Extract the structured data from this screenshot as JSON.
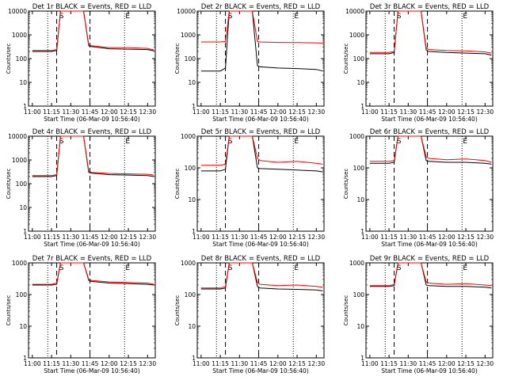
{
  "figure": {
    "common": {
      "ylabel": "Counts/sec",
      "xlabel": "Start Time (06-Mar-09 10:56:40)",
      "x_ticks": [
        "11:00",
        "11:15",
        "11:30",
        "11:45",
        "12:00",
        "12:15",
        "12:30"
      ],
      "y_ticks": [
        "1",
        "10",
        "100",
        "1000",
        "10000"
      ],
      "marker_labels": [
        "S",
        "E"
      ],
      "colors": {
        "events": "#000000",
        "lld": "#ff0000"
      }
    }
  },
  "chart_data": [
    {
      "type": "line",
      "title": "Det 1r BLACK = Events, RED = LLD",
      "xlabel": "Start Time (06-Mar-09 10:56:40)",
      "ylabel": "Counts/sec",
      "x": [
        "11:00",
        "11:15",
        "11:19",
        "11:22",
        "11:30",
        "11:40",
        "11:44",
        "11:46",
        "12:00",
        "12:15",
        "12:30",
        "12:35"
      ],
      "xlim": [
        "10:57",
        "12:36"
      ],
      "ylim": [
        1,
        10000
      ],
      "yscale": "log",
      "grid": false,
      "dotted_lines": [
        "11:12",
        "12:12"
      ],
      "dashed_lines": [
        "11:19",
        "11:45"
      ],
      "series": [
        {
          "role": "events",
          "values": [
            200,
            200,
            220,
            10000,
            10000,
            10000,
            350,
            320,
            260,
            250,
            240,
            210
          ]
        },
        {
          "role": "lld",
          "values": [
            220,
            220,
            240,
            10000,
            10000,
            10000,
            380,
            350,
            290,
            290,
            270,
            230
          ]
        }
      ]
    },
    {
      "type": "line",
      "title": "Det 2r BLACK = Events, RED = LLD",
      "xlabel": "Start Time (06-Mar-09 10:56:40)",
      "ylabel": "Counts/sec",
      "x": [
        "11:00",
        "11:15",
        "11:19",
        "11:22",
        "11:30",
        "11:40",
        "11:44",
        "11:46",
        "12:00",
        "12:15",
        "12:30",
        "12:35"
      ],
      "xlim": [
        "10:57",
        "12:36"
      ],
      "ylim": [
        1,
        10000
      ],
      "yscale": "log",
      "grid": false,
      "dotted_lines": [
        "11:12",
        "12:12"
      ],
      "dashed_lines": [
        "11:19",
        "11:45"
      ],
      "series": [
        {
          "role": "events",
          "values": [
            30,
            30,
            40,
            10000,
            10000,
            10000,
            50,
            45,
            40,
            38,
            35,
            30
          ]
        },
        {
          "role": "lld",
          "values": [
            500,
            500,
            520,
            10000,
            10000,
            10000,
            520,
            500,
            480,
            470,
            460,
            450
          ]
        }
      ]
    },
    {
      "type": "line",
      "title": "Det 3r BLACK = Events, RED = LLD",
      "xlabel": "Start Time (06-Mar-09 10:56:40)",
      "ylabel": "Counts/sec",
      "x": [
        "11:00",
        "11:15",
        "11:19",
        "11:22",
        "11:30",
        "11:40",
        "11:44",
        "11:46",
        "12:00",
        "12:15",
        "12:30",
        "12:35"
      ],
      "xlim": [
        "10:57",
        "12:36"
      ],
      "ylim": [
        1,
        10000
      ],
      "yscale": "log",
      "grid": false,
      "dotted_lines": [
        "11:12",
        "12:12"
      ],
      "dashed_lines": [
        "11:19",
        "11:45"
      ],
      "series": [
        {
          "role": "events",
          "values": [
            160,
            160,
            180,
            10000,
            10000,
            10000,
            230,
            200,
            180,
            170,
            160,
            140
          ]
        },
        {
          "role": "lld",
          "values": [
            180,
            180,
            200,
            10000,
            10000,
            10000,
            280,
            240,
            220,
            210,
            190,
            170
          ]
        }
      ]
    },
    {
      "type": "line",
      "title": "Det 4r BLACK = Events, RED = LLD",
      "xlabel": "Start Time (06-Mar-09 10:56:40)",
      "ylabel": "Counts/sec",
      "x": [
        "11:00",
        "11:15",
        "11:19",
        "11:22",
        "11:30",
        "11:40",
        "11:44",
        "11:46",
        "12:00",
        "12:15",
        "12:30",
        "12:35"
      ],
      "xlim": [
        "10:57",
        "12:36"
      ],
      "ylim": [
        1,
        10000
      ],
      "yscale": "log",
      "grid": false,
      "dotted_lines": [
        "11:12",
        "12:12"
      ],
      "dashed_lines": [
        "11:19",
        "11:45"
      ],
      "series": [
        {
          "role": "events",
          "values": [
            200,
            200,
            220,
            10000,
            10000,
            10000,
            300,
            280,
            240,
            230,
            220,
            200
          ]
        },
        {
          "role": "lld",
          "values": [
            220,
            220,
            240,
            10000,
            10000,
            10000,
            350,
            300,
            270,
            260,
            250,
            230
          ]
        }
      ]
    },
    {
      "type": "line",
      "title": "Det 5r BLACK = Events, RED = LLD",
      "xlabel": "Start Time (06-Mar-09 10:56:40)",
      "ylabel": "Counts/sec",
      "x": [
        "11:00",
        "11:15",
        "11:19",
        "11:22",
        "11:30",
        "11:40",
        "11:44",
        "11:46",
        "12:00",
        "12:15",
        "12:30",
        "12:35"
      ],
      "xlim": [
        "10:57",
        "12:36"
      ],
      "ylim": [
        1,
        1000
      ],
      "yscale": "log",
      "grid": false,
      "dotted_lines": [
        "11:12",
        "12:12"
      ],
      "dashed_lines": [
        "11:19",
        "11:45"
      ],
      "series": [
        {
          "role": "events",
          "values": [
            80,
            80,
            90,
            1000,
            1000,
            1000,
            100,
            95,
            90,
            85,
            80,
            75
          ]
        },
        {
          "role": "lld",
          "values": [
            120,
            120,
            130,
            1000,
            1000,
            1000,
            200,
            170,
            150,
            160,
            140,
            130
          ]
        }
      ]
    },
    {
      "type": "line",
      "title": "Det 6r BLACK = Events, RED = LLD",
      "xlabel": "Start Time (06-Mar-09 10:56:40)",
      "ylabel": "Counts/sec",
      "x": [
        "11:00",
        "11:15",
        "11:19",
        "11:22",
        "11:30",
        "11:40",
        "11:44",
        "11:46",
        "12:00",
        "12:15",
        "12:30",
        "12:35"
      ],
      "xlim": [
        "10:57",
        "12:36"
      ],
      "ylim": [
        1,
        1000
      ],
      "yscale": "log",
      "grid": false,
      "dotted_lines": [
        "11:12",
        "12:12"
      ],
      "dashed_lines": [
        "11:19",
        "11:45"
      ],
      "series": [
        {
          "role": "events",
          "values": [
            140,
            140,
            150,
            1000,
            1000,
            1000,
            170,
            160,
            150,
            150,
            140,
            130
          ]
        },
        {
          "role": "lld",
          "values": [
            160,
            160,
            170,
            1000,
            1000,
            1000,
            220,
            200,
            180,
            190,
            170,
            150
          ]
        }
      ]
    },
    {
      "type": "line",
      "title": "Det 7r BLACK = Events, RED = LLD",
      "xlabel": "Start Time (06-Mar-09 10:56:40)",
      "ylabel": "Counts/sec",
      "x": [
        "11:00",
        "11:15",
        "11:19",
        "11:22",
        "11:30",
        "11:40",
        "11:44",
        "11:46",
        "12:00",
        "12:15",
        "12:30",
        "12:35"
      ],
      "xlim": [
        "10:57",
        "12:36"
      ],
      "ylim": [
        1,
        1000
      ],
      "yscale": "log",
      "grid": false,
      "dotted_lines": [
        "11:12",
        "12:12"
      ],
      "dashed_lines": [
        "11:19",
        "11:45"
      ],
      "series": [
        {
          "role": "events",
          "values": [
            200,
            200,
            210,
            1000,
            1000,
            1000,
            280,
            260,
            230,
            220,
            210,
            200
          ]
        },
        {
          "role": "lld",
          "values": [
            210,
            210,
            230,
            1000,
            1000,
            1000,
            300,
            280,
            250,
            240,
            230,
            210
          ]
        }
      ]
    },
    {
      "type": "line",
      "title": "Det 8r BLACK = Events, RED = LLD",
      "xlabel": "Start Time (06-Mar-09 10:56:40)",
      "ylabel": "Counts/sec",
      "x": [
        "11:00",
        "11:15",
        "11:19",
        "11:22",
        "11:30",
        "11:40",
        "11:44",
        "11:46",
        "12:00",
        "12:15",
        "12:30",
        "12:35"
      ],
      "xlim": [
        "10:57",
        "12:36"
      ],
      "ylim": [
        1,
        1000
      ],
      "yscale": "log",
      "grid": false,
      "dotted_lines": [
        "11:12",
        "12:12"
      ],
      "dashed_lines": [
        "11:19",
        "11:45"
      ],
      "series": [
        {
          "role": "events",
          "values": [
            150,
            150,
            160,
            1000,
            1000,
            1000,
            180,
            160,
            150,
            145,
            140,
            130
          ]
        },
        {
          "role": "lld",
          "values": [
            160,
            160,
            180,
            1000,
            1000,
            1000,
            240,
            210,
            190,
            200,
            180,
            170
          ]
        }
      ]
    },
    {
      "type": "line",
      "title": "Det 9r BLACK = Events, RED = LLD",
      "xlabel": "Start Time (06-Mar-09 10:56:40)",
      "ylabel": "Counts/sec",
      "x": [
        "11:00",
        "11:15",
        "11:19",
        "11:22",
        "11:30",
        "11:40",
        "11:44",
        "11:46",
        "12:00",
        "12:15",
        "12:30",
        "12:35"
      ],
      "xlim": [
        "10:57",
        "12:36"
      ],
      "ylim": [
        1,
        1000
      ],
      "yscale": "log",
      "grid": false,
      "dotted_lines": [
        "11:12",
        "12:12"
      ],
      "dashed_lines": [
        "11:19",
        "11:45"
      ],
      "series": [
        {
          "role": "events",
          "values": [
            180,
            180,
            190,
            1000,
            1000,
            1000,
            200,
            190,
            180,
            180,
            170,
            160
          ]
        },
        {
          "role": "lld",
          "values": [
            190,
            190,
            210,
            1000,
            1000,
            1000,
            250,
            230,
            210,
            220,
            200,
            190
          ]
        }
      ]
    }
  ]
}
